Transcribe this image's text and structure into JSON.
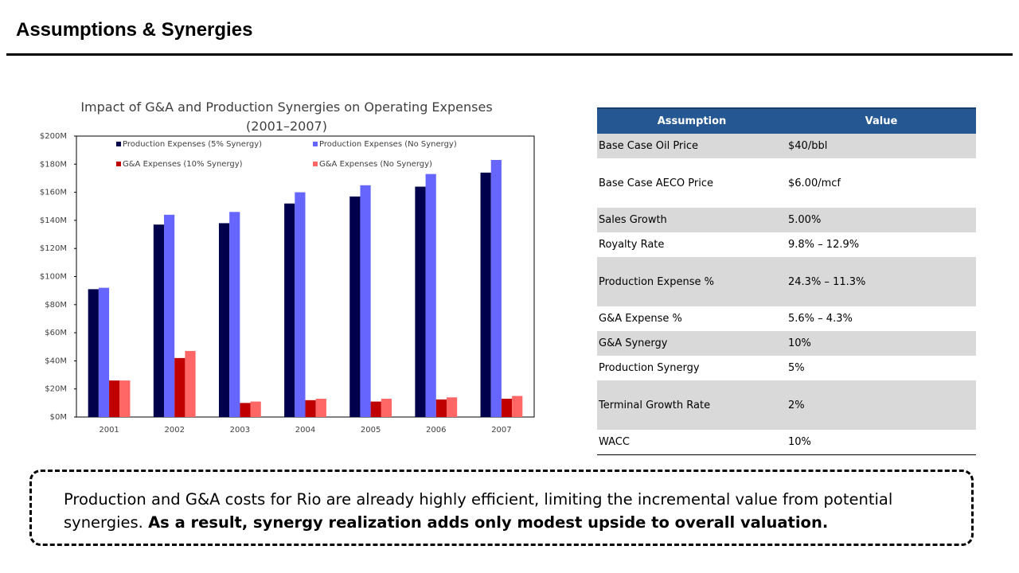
{
  "header": {
    "title": "Assumptions & Synergies"
  },
  "chart_data": {
    "type": "bar",
    "title": "Impact of G&A and Production Synergies on Operating Expenses (2001–2007)",
    "categories": [
      "2001",
      "2002",
      "2003",
      "2004",
      "2005",
      "2006",
      "2007"
    ],
    "series": [
      {
        "name": "Production Expenses (5% Synergy)",
        "color": "#00004d",
        "values": [
          91,
          137,
          138,
          152,
          157,
          164,
          174
        ]
      },
      {
        "name": "Production Expenses (No Synergy)",
        "color": "#6666ff",
        "values": [
          92,
          144,
          146,
          160,
          165,
          173,
          183
        ]
      },
      {
        "name": "G&A Expenses (10% Synergy)",
        "color": "#c00000",
        "values": [
          26,
          42,
          10,
          12,
          11,
          12.5,
          13
        ]
      },
      {
        "name": "G&A Expenses (No Synergy)",
        "color": "#ff6666",
        "values": [
          26,
          47,
          11,
          13,
          13,
          14,
          15
        ]
      }
    ],
    "ylim": [
      0,
      200
    ],
    "yticks": [
      {
        "value": 0,
        "label": "$0M"
      },
      {
        "value": 20,
        "label": "$20M"
      },
      {
        "value": 40,
        "label": "$40M"
      },
      {
        "value": 60,
        "label": "$60M"
      },
      {
        "value": 80,
        "label": "$80M"
      },
      {
        "value": 100,
        "label": "$100M"
      },
      {
        "value": 120,
        "label": "$120M"
      },
      {
        "value": 140,
        "label": "$140M"
      },
      {
        "value": 160,
        "label": "$160M"
      },
      {
        "value": 180,
        "label": "$180M"
      },
      {
        "value": 200,
        "label": "$200M"
      }
    ],
    "grid": false,
    "legend": "top"
  },
  "table": {
    "header": [
      "Assumption",
      "Value"
    ],
    "rows": [
      [
        "Base Case Oil Price",
        "$40/bbl"
      ],
      [
        "Base Case AECO Price",
        "$6.00/mcf"
      ],
      [
        "Sales Growth",
        "5.00%"
      ],
      [
        "Royalty Rate",
        "9.8% – 12.9%"
      ],
      [
        "Production Expense %",
        "24.3% – 11.3%"
      ],
      [
        "G&A Expense %",
        "5.6% – 4.3%"
      ],
      [
        "G&A Synergy",
        "10%"
      ],
      [
        "Production Synergy",
        "5%"
      ],
      [
        "Terminal Growth Rate",
        "2%"
      ],
      [
        "WACC",
        "10%"
      ]
    ]
  },
  "note": {
    "text": "Production and G&A costs for Rio are already highly efficient, limiting the incremental value from potential synergies.",
    "bold": "As a result, synergy realization adds only modest upside to overall valuation."
  }
}
